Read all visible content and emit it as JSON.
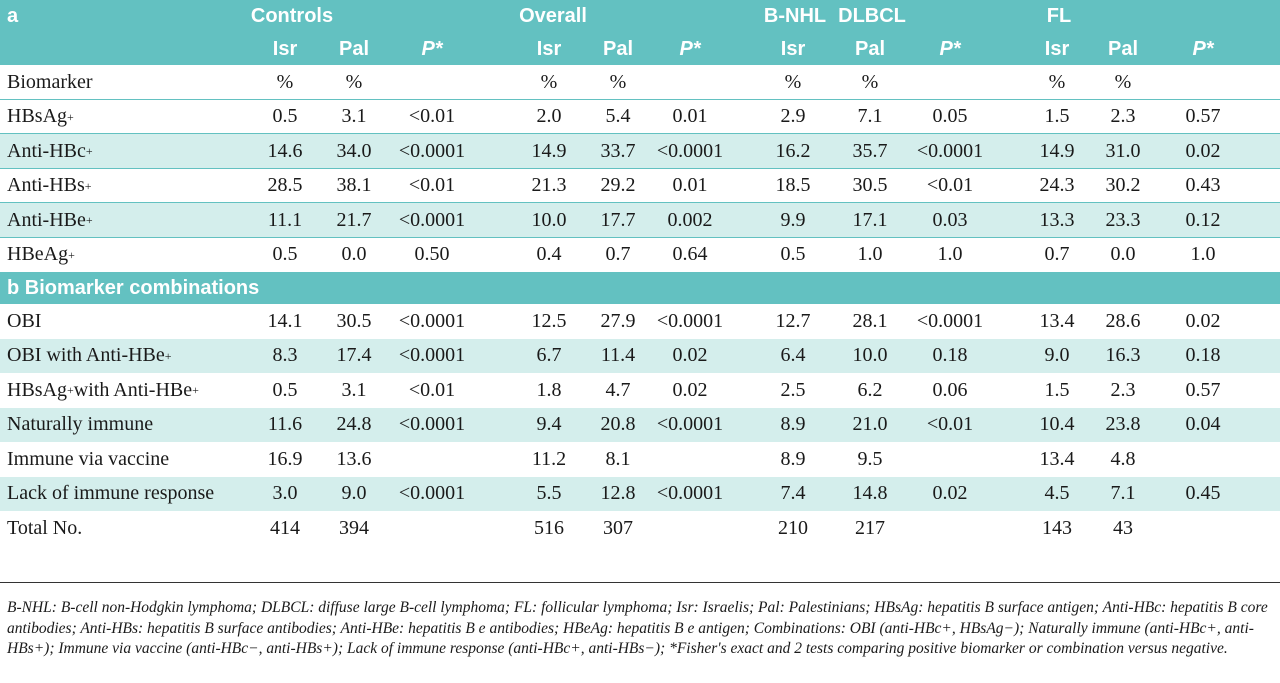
{
  "header": {
    "section_a": "a",
    "groups": {
      "controls": "Controls",
      "overall": "Overall",
      "bnhl": "B-NHL",
      "dlbcl": "DLBCL",
      "fl": "FL"
    },
    "cols": [
      "Isr",
      "Pal",
      "P*",
      "Isr",
      "Pal",
      "P*",
      "Isr",
      "Pal",
      "P*",
      "Isr",
      "Pal",
      "P*"
    ]
  },
  "section_a_rows": [
    {
      "label": "Biomarker",
      "sup": "",
      "values": [
        "%",
        "%",
        "",
        "%",
        "%",
        "",
        "%",
        "%",
        "",
        "%",
        "%",
        ""
      ]
    },
    {
      "label": "HBsAg",
      "sup": "+",
      "values": [
        "0.5",
        "3.1",
        "<0.01",
        "2.0",
        "5.4",
        "0.01",
        "2.9",
        "7.1",
        "0.05",
        "1.5",
        "2.3",
        "0.57"
      ]
    },
    {
      "label": "Anti-HBc",
      "sup": "+",
      "values": [
        "14.6",
        "34.0",
        "<0.0001",
        "14.9",
        "33.7",
        "<0.0001",
        "16.2",
        "35.7",
        "<0.0001",
        "14.9",
        "31.0",
        "0.02"
      ]
    },
    {
      "label": "Anti-HBs",
      "sup": "+",
      "values": [
        "28.5",
        "38.1",
        "<0.01",
        "21.3",
        "29.2",
        "0.01",
        "18.5",
        "30.5",
        "<0.01",
        "24.3",
        "30.2",
        "0.43"
      ]
    },
    {
      "label": "Anti-HBe",
      "sup": "+",
      "values": [
        "11.1",
        "21.7",
        "<0.0001",
        "10.0",
        "17.7",
        "0.002",
        "9.9",
        "17.1",
        "0.03",
        "13.3",
        "23.3",
        "0.12"
      ]
    },
    {
      "label": "HBeAg",
      "sup": "+",
      "values": [
        "0.5",
        "0.0",
        "0.50",
        "0.4",
        "0.7",
        "0.64",
        "0.5",
        "1.0",
        "1.0",
        "0.7",
        "0.0",
        "1.0"
      ]
    }
  ],
  "section_b_title": "b Biomarker combinations",
  "section_b_rows": [
    {
      "label": "OBI",
      "values": [
        "14.1",
        "30.5",
        "<0.0001",
        "12.5",
        "27.9",
        "<0.0001",
        "12.7",
        "28.1",
        "<0.0001",
        "13.4",
        "28.6",
        "0.02"
      ]
    },
    {
      "label": "OBI with Anti-HBe",
      "values": [
        "8.3",
        "17.4",
        "<0.0001",
        "6.7",
        "11.4",
        "0.02",
        "6.4",
        "10.0",
        "0.18",
        "9.0",
        "16.3",
        "0.18"
      ]
    },
    {
      "label": "HBsAg with Anti-HBe",
      "values": [
        "0.5",
        "3.1",
        "<0.01",
        "1.8",
        "4.7",
        "0.02",
        "2.5",
        "6.2",
        "0.06",
        "1.5",
        "2.3",
        "0.57"
      ]
    },
    {
      "label": "Naturally immune",
      "values": [
        "11.6",
        "24.8",
        "<0.0001",
        "9.4",
        "20.8",
        "<0.0001",
        "8.9",
        "21.0",
        "<0.01",
        "10.4",
        "23.8",
        "0.04"
      ]
    },
    {
      "label": "Immune via vaccine",
      "values": [
        "16.9",
        "13.6",
        "",
        "11.2",
        "8.1",
        "",
        "8.9",
        "9.5",
        "",
        "13.4",
        "4.8",
        ""
      ]
    },
    {
      "label": "Lack of immune response",
      "values": [
        "3.0",
        "9.0",
        "<0.0001",
        "5.5",
        "12.8",
        "<0.0001",
        "7.4",
        "14.8",
        "0.02",
        "4.5",
        "7.1",
        "0.45"
      ]
    },
    {
      "label": "Total No.",
      "values": [
        "414",
        "394",
        "",
        "516",
        "307",
        "",
        "210",
        "217",
        "",
        "143",
        "43",
        ""
      ]
    }
  ],
  "footnote": "B-NHL: B-cell non-Hodgkin lymphoma; DLBCL: diffuse large B-cell lymphoma; FL: follicular lymphoma; Isr: Israelis; Pal: Palestinians;  HBsAg: hepatitis B surface antigen; Anti-HBc: hepatitis B core antibodies; Anti-HBs: hepatitis B surface antibodies; Anti-HBe: hepatitis B e antibodies; HBeAg: hepatitis B e antigen;  Combinations: OBI (anti-HBc+, HBsAg−); Naturally immune (anti-HBc+, anti-HBs+); Immune via vaccine (anti-HBc−, anti-HBs+); Lack of immune response (anti-HBc+, anti-HBs−); *Fisher's exact and 2 tests comparing positive biomarker or combination versus negative."
}
